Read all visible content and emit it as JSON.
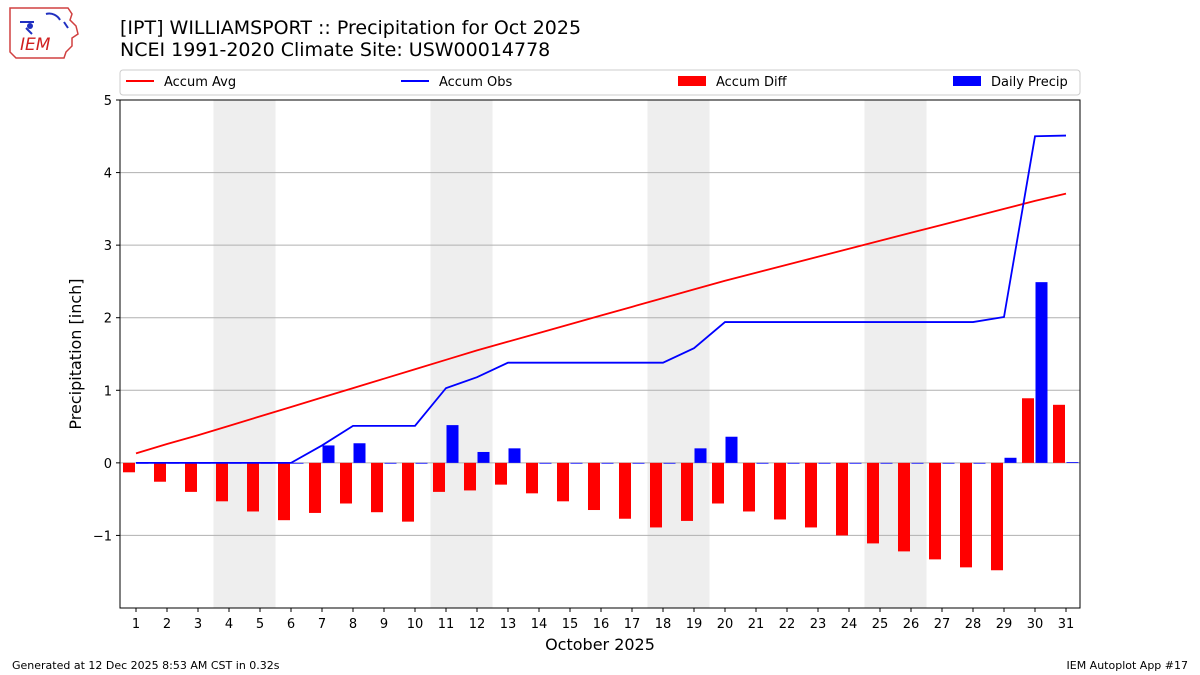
{
  "header": {
    "title": "[IPT] WILLIAMSPORT :: Precipitation for Oct 2025",
    "subtitle": "NCEI 1991-2020 Climate Site: USW00014778",
    "logo_text": "IEM"
  },
  "footer": {
    "generated": "Generated at 12 Dec 2025 8:53 AM CST in 0.32s",
    "app": "IEM Autoplot App #17"
  },
  "chart_data": {
    "type": "bar",
    "xlabel": "October 2025",
    "ylabel": "Precipitation [inch]",
    "ylim": [
      -2.0,
      5.0
    ],
    "yticks": [
      -1,
      0,
      1,
      2,
      3,
      4,
      5
    ],
    "ytick_labels": [
      "−1",
      "0",
      "1",
      "2",
      "3",
      "4",
      "5"
    ],
    "grid": "horizontal",
    "legend_position": "top",
    "weekend_shading": [
      [
        4,
        5
      ],
      [
        11,
        12
      ],
      [
        18,
        19
      ],
      [
        25,
        26
      ]
    ],
    "categories": [
      "1",
      "2",
      "3",
      "4",
      "5",
      "6",
      "7",
      "8",
      "9",
      "10",
      "11",
      "12",
      "13",
      "14",
      "15",
      "16",
      "17",
      "18",
      "19",
      "20",
      "21",
      "22",
      "23",
      "24",
      "25",
      "26",
      "27",
      "28",
      "29",
      "30",
      "31"
    ],
    "series": [
      {
        "name": "Accum Avg",
        "kind": "line",
        "color": "#ff0000",
        "values": [
          0.13,
          0.26,
          0.38,
          0.51,
          0.64,
          0.77,
          0.9,
          1.03,
          1.16,
          1.29,
          1.42,
          1.55,
          1.67,
          1.79,
          1.91,
          2.03,
          2.15,
          2.27,
          2.39,
          2.51,
          2.62,
          2.73,
          2.84,
          2.95,
          3.06,
          3.17,
          3.28,
          3.39,
          3.5,
          3.61,
          3.71
        ]
      },
      {
        "name": "Accum Obs",
        "kind": "line",
        "color": "#0000ff",
        "values": [
          0.0,
          0.0,
          0.0,
          0.0,
          0.0,
          0.0,
          0.24,
          0.51,
          0.51,
          0.51,
          1.03,
          1.18,
          1.38,
          1.38,
          1.38,
          1.38,
          1.38,
          1.38,
          1.58,
          1.94,
          1.94,
          1.94,
          1.94,
          1.94,
          1.94,
          1.94,
          1.94,
          1.94,
          2.01,
          4.5,
          4.51
        ]
      },
      {
        "name": "Accum Diff",
        "kind": "bar",
        "color": "#ff0000",
        "values": [
          -0.13,
          -0.26,
          -0.4,
          -0.53,
          -0.67,
          -0.79,
          -0.69,
          -0.56,
          -0.68,
          -0.81,
          -0.4,
          -0.38,
          -0.3,
          -0.42,
          -0.53,
          -0.65,
          -0.77,
          -0.89,
          -0.8,
          -0.56,
          -0.67,
          -0.78,
          -0.89,
          -1.0,
          -1.11,
          -1.22,
          -1.33,
          -1.44,
          -1.48,
          0.89,
          0.8
        ]
      },
      {
        "name": "Daily Precip",
        "kind": "bar",
        "color": "#0000ff",
        "values": [
          0,
          0,
          0,
          0,
          0,
          0,
          0.24,
          0.27,
          0,
          0,
          0.52,
          0.15,
          0.2,
          0,
          0,
          0,
          0,
          0,
          0.2,
          0.36,
          0,
          0,
          0,
          0,
          0,
          0,
          0,
          0,
          0.07,
          2.49,
          0.01
        ]
      }
    ]
  }
}
